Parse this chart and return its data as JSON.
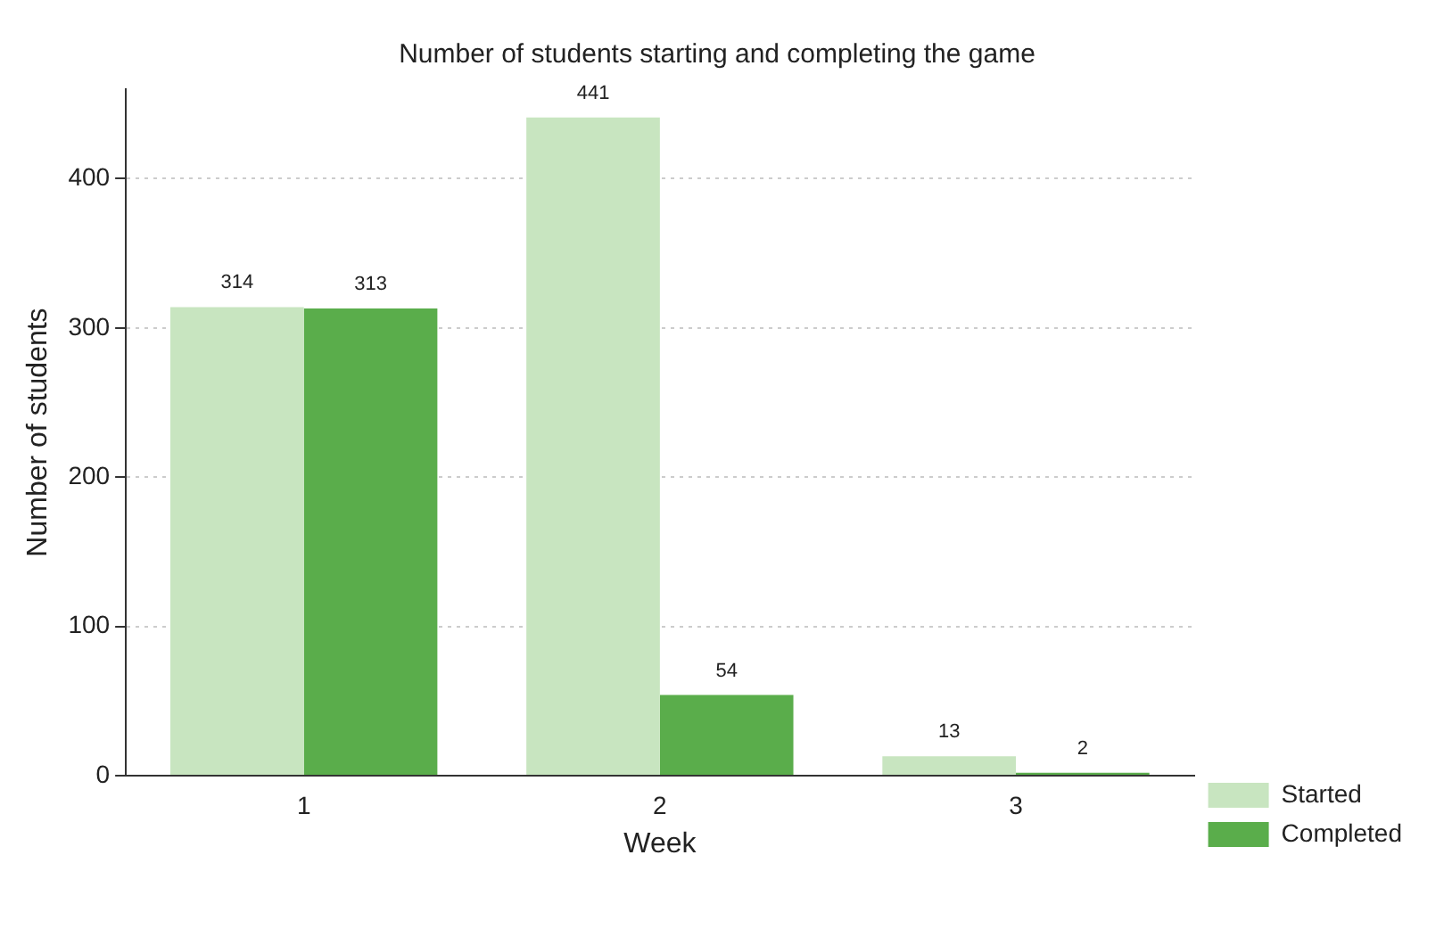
{
  "chart_data": {
    "type": "bar",
    "title": "Number of students starting and completing the game",
    "xlabel": "Week",
    "ylabel": "Number of students",
    "categories": [
      "1",
      "2",
      "3"
    ],
    "series": [
      {
        "name": "Started",
        "color": "#c8e5c0",
        "values": [
          314,
          441,
          13
        ]
      },
      {
        "name": "Completed",
        "color": "#5aad4b",
        "values": [
          313,
          54,
          2
        ]
      }
    ],
    "ylim": [
      0,
      460
    ],
    "yticks": [
      0,
      100,
      200,
      300,
      400
    ],
    "grid": "y",
    "legend": "bottom right",
    "data_labels": true
  }
}
